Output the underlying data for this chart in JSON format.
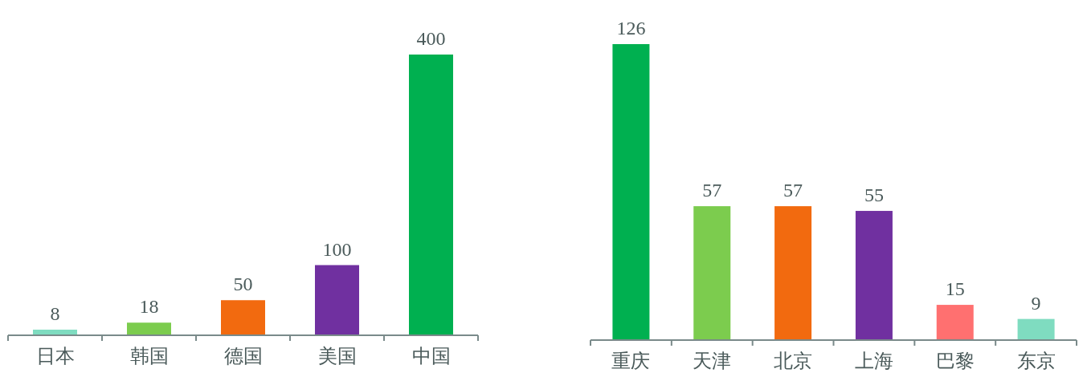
{
  "chart_data": [
    {
      "type": "bar",
      "categories": [
        "日本",
        "韩国",
        "德国",
        "美国",
        "中国"
      ],
      "values": [
        8,
        18,
        50,
        100,
        400
      ],
      "colors": [
        "#7fdcc0",
        "#7ccc4e",
        "#f26a0f",
        "#7030a0",
        "#00b050"
      ],
      "data_labels": true
    },
    {
      "type": "bar",
      "categories": [
        "重庆",
        "天津",
        "北京",
        "上海",
        "巴黎",
        "东京"
      ],
      "values": [
        126,
        57,
        57,
        55,
        15,
        9
      ],
      "colors": [
        "#00b050",
        "#7ccc4e",
        "#f26a0f",
        "#7030a0",
        "#ff7070",
        "#7fdcc0"
      ],
      "data_labels": true
    }
  ]
}
